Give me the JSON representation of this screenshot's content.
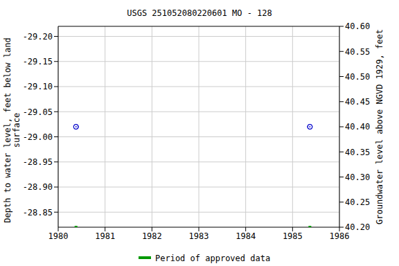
{
  "chart_data": {
    "type": "scatter",
    "title": "USGS 251052080220601 MO - 128",
    "y_label": "Depth to water level, feet below land surface",
    "y2_label": "Groundwater level above NGVD 1929, feet",
    "x": [
      1980.38,
      1985.37
    ],
    "xlim": [
      1980,
      1986
    ],
    "xticks": [
      1980,
      1981,
      1982,
      1983,
      1984,
      1985,
      1986
    ],
    "ylim": [
      -29.22,
      -28.82
    ],
    "yticks": [
      {
        "value": -29.2,
        "label": "-29.20"
      },
      -29.15,
      {
        "value": -29.1,
        "label": "-29.10"
      },
      -29.05,
      {
        "value": -29.0,
        "label": "-29.00"
      },
      -28.95,
      {
        "value": -28.9,
        "label": "-28.90"
      },
      -28.85
    ],
    "y2lim": [
      40.2,
      40.6
    ],
    "y2ticks": [
      {
        "value": 40.2,
        "label": "40.20"
      },
      40.25,
      {
        "value": 40.3,
        "label": "40.30"
      },
      40.35,
      {
        "value": 40.4,
        "label": "40.40"
      },
      40.45,
      {
        "value": 40.5,
        "label": "40.50"
      },
      40.55,
      {
        "value": 40.6,
        "label": "40.60"
      }
    ],
    "grid": true,
    "legend": "bottom",
    "series": [
      {
        "color": "#0000cc",
        "marker": "circle",
        "values": [
          -29.02,
          -29.02
        ]
      },
      {
        "axis": "y2",
        "color": "#0000cc",
        "marker": "circle",
        "values": [
          40.4,
          40.4
        ]
      }
    ],
    "approved_periods": {
      "name": "Period of approved data",
      "color": "#009900",
      "x": [
        1980.38,
        1985.37
      ]
    }
  }
}
